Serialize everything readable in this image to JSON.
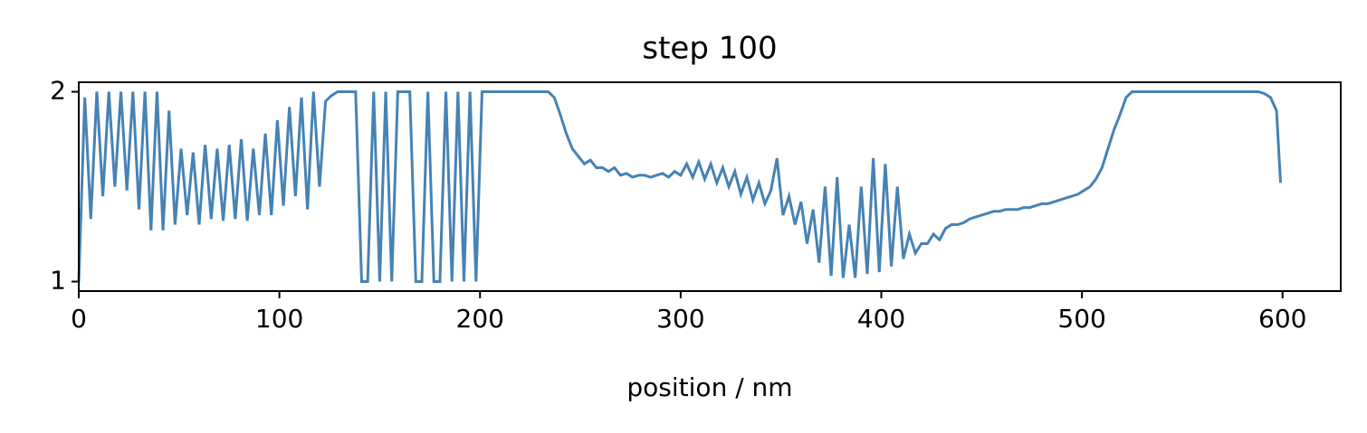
{
  "chart_data": {
    "type": "line",
    "title": "step 100",
    "xlabel": "position / nm",
    "xlim": [
      0,
      629
    ],
    "ylim": [
      0.95,
      2.05
    ],
    "xticks": [
      0,
      100,
      200,
      300,
      400,
      500,
      600
    ],
    "yticks": [
      1,
      2
    ],
    "series": [
      {
        "color": "#4682b4",
        "x": [
          0,
          3,
          6,
          9,
          12,
          15,
          18,
          21,
          24,
          27,
          30,
          33,
          36,
          39,
          42,
          45,
          48,
          51,
          54,
          57,
          60,
          63,
          66,
          69,
          72,
          75,
          78,
          81,
          84,
          87,
          90,
          93,
          96,
          99,
          102,
          105,
          108,
          111,
          114,
          117,
          120,
          123,
          126,
          129,
          132,
          135,
          138,
          141,
          144,
          147,
          150,
          153,
          156,
          159,
          162,
          165,
          168,
          171,
          174,
          177,
          180,
          183,
          186,
          189,
          192,
          195,
          198,
          201,
          204,
          207,
          210,
          213,
          216,
          219,
          222,
          225,
          228,
          231,
          234,
          237,
          240,
          243,
          246,
          249,
          252,
          255,
          258,
          261,
          264,
          267,
          270,
          273,
          276,
          279,
          282,
          285,
          288,
          291,
          294,
          297,
          300,
          303,
          306,
          309,
          312,
          315,
          318,
          321,
          324,
          327,
          330,
          333,
          336,
          339,
          342,
          345,
          348,
          351,
          354,
          357,
          360,
          363,
          366,
          369,
          372,
          375,
          378,
          381,
          384,
          387,
          390,
          393,
          396,
          399,
          402,
          405,
          408,
          411,
          414,
          417,
          420,
          423,
          426,
          429,
          432,
          435,
          438,
          441,
          444,
          447,
          450,
          453,
          456,
          459,
          462,
          465,
          468,
          471,
          474,
          477,
          480,
          483,
          486,
          489,
          492,
          495,
          498,
          501,
          504,
          507,
          510,
          513,
          516,
          519,
          522,
          525,
          528,
          531,
          534,
          537,
          540,
          543,
          546,
          549,
          552,
          555,
          558,
          561,
          564,
          567,
          570,
          573,
          576,
          579,
          582,
          585,
          588,
          591,
          594,
          597,
          599
        ],
        "values": [
          1.0,
          1.97,
          1.33,
          2.0,
          1.45,
          2.0,
          1.5,
          2.0,
          1.48,
          2.0,
          1.38,
          2.0,
          1.27,
          2.0,
          1.27,
          1.9,
          1.3,
          1.7,
          1.35,
          1.68,
          1.3,
          1.72,
          1.33,
          1.7,
          1.32,
          1.72,
          1.33,
          1.75,
          1.32,
          1.7,
          1.35,
          1.78,
          1.35,
          1.85,
          1.4,
          1.92,
          1.45,
          1.97,
          1.38,
          2.0,
          1.5,
          1.95,
          1.98,
          2.0,
          2.0,
          2.0,
          2.0,
          1.0,
          1.0,
          2.0,
          1.0,
          2.0,
          1.0,
          2.0,
          2.0,
          2.0,
          1.0,
          1.0,
          2.0,
          1.0,
          1.0,
          2.0,
          1.0,
          2.0,
          1.0,
          2.0,
          1.0,
          2.0,
          2.0,
          2.0,
          2.0,
          2.0,
          2.0,
          2.0,
          2.0,
          2.0,
          2.0,
          2.0,
          2.0,
          1.97,
          1.88,
          1.78,
          1.7,
          1.66,
          1.62,
          1.64,
          1.6,
          1.6,
          1.58,
          1.6,
          1.56,
          1.57,
          1.55,
          1.56,
          1.56,
          1.55,
          1.56,
          1.57,
          1.55,
          1.58,
          1.56,
          1.62,
          1.55,
          1.63,
          1.54,
          1.62,
          1.52,
          1.6,
          1.5,
          1.58,
          1.46,
          1.55,
          1.43,
          1.52,
          1.41,
          1.48,
          1.65,
          1.35,
          1.45,
          1.3,
          1.42,
          1.2,
          1.38,
          1.1,
          1.5,
          1.03,
          1.55,
          1.02,
          1.3,
          1.02,
          1.5,
          1.04,
          1.65,
          1.05,
          1.62,
          1.08,
          1.5,
          1.12,
          1.25,
          1.15,
          1.2,
          1.2,
          1.25,
          1.22,
          1.28,
          1.3,
          1.3,
          1.31,
          1.33,
          1.34,
          1.35,
          1.36,
          1.37,
          1.37,
          1.38,
          1.38,
          1.38,
          1.39,
          1.39,
          1.4,
          1.41,
          1.41,
          1.42,
          1.43,
          1.44,
          1.45,
          1.46,
          1.48,
          1.5,
          1.54,
          1.6,
          1.7,
          1.8,
          1.88,
          1.97,
          2.0,
          2.0,
          2.0,
          2.0,
          2.0,
          2.0,
          2.0,
          2.0,
          2.0,
          2.0,
          2.0,
          2.0,
          2.0,
          2.0,
          2.0,
          2.0,
          2.0,
          2.0,
          2.0,
          2.0,
          2.0,
          2.0,
          1.99,
          1.97,
          1.9,
          1.52
        ]
      }
    ]
  }
}
